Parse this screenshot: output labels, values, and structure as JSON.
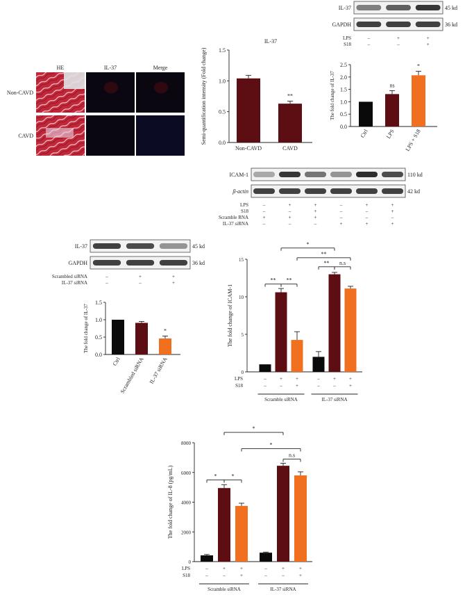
{
  "colors": {
    "ctrl": "#0a0a0a",
    "lps": "#5c0e12",
    "s18": "#f07020",
    "tissue_red": "#c0283a",
    "fluor_bg": "#0b0711",
    "blot_band": "#222222"
  },
  "panel_he": {
    "columns": [
      "HE",
      "IL-37",
      "Merge"
    ],
    "rows": [
      "Non-CAVD",
      "CAVD"
    ]
  },
  "blot_top": {
    "labels": [
      "IL-37",
      "GAPDH"
    ],
    "kd": [
      "45 kd",
      "36 kd"
    ],
    "conditions": [
      {
        "name": "LPS",
        "marks": [
          "–",
          "+",
          "+"
        ]
      },
      {
        "name": "S18",
        "marks": [
          "–",
          "–",
          "+"
        ]
      }
    ]
  },
  "blot_sirna": {
    "labels": [
      "IL-37",
      "GAPDH"
    ],
    "kd": [
      "45 kd",
      "36 kd"
    ],
    "conditions": [
      {
        "name": "Scrambled siRNA",
        "marks": [
          "–",
          "+",
          "+"
        ]
      },
      {
        "name": "IL-37 siRNA",
        "marks": [
          "–",
          "–",
          "+"
        ]
      }
    ]
  },
  "blot_icam": {
    "labels": [
      "ICAM-1",
      "β-actin"
    ],
    "kd": [
      "110 kd",
      "42 kd"
    ],
    "conditions": [
      {
        "name": "LPS",
        "marks": [
          "–",
          "+",
          "+",
          "–",
          "+",
          "+"
        ]
      },
      {
        "name": "S18",
        "marks": [
          "–",
          "–",
          "+",
          "–",
          "–",
          "+"
        ]
      },
      {
        "name": "Scramble RNA",
        "marks": [
          "+",
          "+",
          "+",
          "–",
          "–",
          "–"
        ]
      },
      {
        "name": "IL-37 siRNA",
        "marks": [
          "–",
          "–",
          "–",
          "+",
          "+",
          "+"
        ]
      }
    ]
  },
  "chart_data": [
    {
      "id": "semiquant",
      "type": "bar",
      "title": "IL-37",
      "ylabel": "Semi-quantification intensity (Fold change)",
      "categories": [
        "Non-CAVD",
        "CAVD"
      ],
      "values": [
        1.04,
        0.63
      ],
      "errors": [
        0.05,
        0.04
      ],
      "ylim": [
        0,
        1.5
      ],
      "yticks": [
        "0.0",
        "0.5",
        "1.0",
        "1.5"
      ],
      "significance": [
        "",
        "**"
      ]
    },
    {
      "id": "il37_lps",
      "type": "bar",
      "title": "",
      "ylabel": "The fold change of IL-37",
      "categories": [
        "Ctrl",
        "LPS",
        "LPS + S18"
      ],
      "values": [
        1.0,
        1.31,
        2.07
      ],
      "errors": [
        0.0,
        0.14,
        0.16
      ],
      "ylim": [
        0,
        2.5
      ],
      "yticks": [
        "0.0",
        "0.5",
        "1.0",
        "1.5",
        "2.0",
        "2.5"
      ],
      "significance": [
        "",
        "ns",
        "*"
      ]
    },
    {
      "id": "il37_sirna",
      "type": "bar",
      "title": "",
      "ylabel": "The fold change of IL-37",
      "categories": [
        "Ctrl",
        "Scrambled siRNA",
        "IL-37 siRNA"
      ],
      "values": [
        1.0,
        0.91,
        0.46
      ],
      "errors": [
        0.0,
        0.04,
        0.07
      ],
      "ylim": [
        0,
        1.5
      ],
      "yticks": [
        "0.0",
        "0.5",
        "1.0",
        "1.5"
      ],
      "significance": [
        "",
        "",
        "*"
      ]
    },
    {
      "id": "icam1",
      "type": "bar",
      "title": "",
      "ylabel": "The fold change of ICAM-1",
      "groups": [
        "Scramble siRNA",
        "IL-37 siRNA"
      ],
      "values": [
        1.0,
        10.6,
        4.25,
        2.0,
        13.0,
        11.1
      ],
      "errors": [
        0.0,
        0.5,
        1.1,
        0.7,
        0.25,
        0.3
      ],
      "ylim": [
        0,
        15
      ],
      "yticks": [
        "0",
        "5",
        "10",
        "15"
      ],
      "conditions": [
        {
          "name": "LPS",
          "marks": [
            "–",
            "+",
            "+",
            "–",
            "+",
            "+"
          ]
        },
        {
          "name": "S18",
          "marks": [
            "–",
            "–",
            "+",
            "–",
            "–",
            "+"
          ]
        }
      ],
      "brackets": [
        {
          "from": 0,
          "to": 1,
          "level": 11.7,
          "label": "**"
        },
        {
          "from": 1,
          "to": 2,
          "level": 11.7,
          "label": "**"
        },
        {
          "from": 3,
          "to": 4,
          "level": 14.0,
          "label": "**"
        },
        {
          "from": 4,
          "to": 5,
          "level": 14.0,
          "label": "n.s"
        },
        {
          "from": 2,
          "to": 5,
          "level": 15.2,
          "label": "**"
        },
        {
          "from": 1,
          "to": 4,
          "level": 16.5,
          "label": "*"
        }
      ]
    },
    {
      "id": "il8",
      "type": "bar",
      "title": "",
      "ylabel": "The fold change of IL-8 (pg/mL)",
      "groups": [
        "Scramble siRNA",
        "IL-37 siRNA"
      ],
      "values": [
        420,
        4950,
        3750,
        600,
        6450,
        5800
      ],
      "errors": [
        60,
        230,
        180,
        40,
        170,
        240
      ],
      "ylim": [
        0,
        8000
      ],
      "yticks": [
        "0",
        "2000",
        "4000",
        "6000",
        "8000"
      ],
      "conditions": [
        {
          "name": "LPS",
          "marks": [
            "–",
            "+",
            "+",
            "–",
            "+",
            "+"
          ]
        },
        {
          "name": "S18",
          "marks": [
            "–",
            "–",
            "+",
            "–",
            "–",
            "+"
          ]
        }
      ],
      "brackets": [
        {
          "from": 0,
          "to": 1,
          "level": 5500,
          "label": "*"
        },
        {
          "from": 1,
          "to": 2,
          "level": 5500,
          "label": "*"
        },
        {
          "from": 4,
          "to": 5,
          "level": 6900,
          "label": "n.s"
        },
        {
          "from": 2,
          "to": 5,
          "level": 7600,
          "label": "*"
        },
        {
          "from": 1,
          "to": 4,
          "level": 8700,
          "label": "*"
        }
      ]
    }
  ]
}
